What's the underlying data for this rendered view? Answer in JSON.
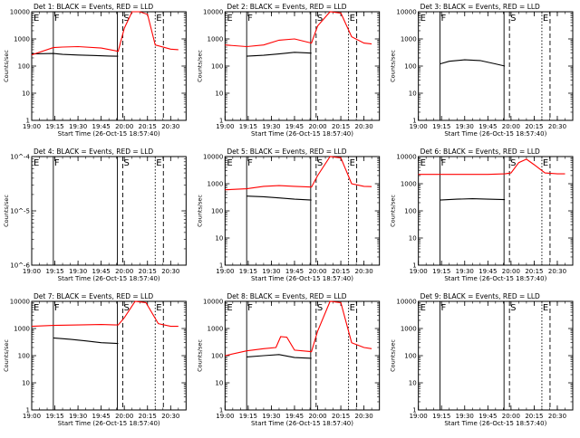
{
  "chart_data": [
    {
      "type": "line",
      "title": "Det 1: BLACK = Events, RED = LLD",
      "xlabel": "Start Time (26-Oct-15 18:57:40)",
      "ylabel": "Counts/sec",
      "xlim": [
        "19:00",
        "20:40"
      ],
      "ylim": [
        1,
        10000
      ],
      "yscale": "log",
      "x_ticks": [
        "19:00",
        "19:15",
        "19:30",
        "19:45",
        "20:00",
        "20:15",
        "20:30"
      ],
      "y_ticks": [
        "1",
        "10",
        "100",
        "1000",
        "10000"
      ],
      "markers": [
        {
          "label": "E",
          "time": "19:00"
        },
        {
          "label": "F",
          "time": "19:14"
        },
        {
          "label": "S",
          "time": "19:59"
        },
        {
          "label": "E",
          "time": "20:20"
        }
      ],
      "series": [
        {
          "name": "Events",
          "color": "#000000",
          "x": [
            "19:00",
            "19:14",
            "19:20",
            "19:30",
            "19:40",
            "19:50",
            "19:56"
          ],
          "values": [
            280,
            290,
            270,
            255,
            245,
            235,
            230
          ]
        },
        {
          "name": "LLD",
          "color": "#ff0000",
          "x": [
            "19:00",
            "19:14",
            "19:20",
            "19:30",
            "19:45",
            "19:56",
            "20:00",
            "20:05",
            "20:10",
            "20:15",
            "20:20",
            "20:30",
            "20:35"
          ],
          "values": [
            260,
            480,
            500,
            520,
            460,
            350,
            2500,
            10000,
            10000,
            8000,
            600,
            420,
            400
          ]
        }
      ]
    },
    {
      "type": "line",
      "title": "Det 2: BLACK = Events, RED = LLD",
      "xlabel": "Start Time (26-Oct-15 18:57:40)",
      "ylabel": "Counts/sec",
      "xlim": [
        "19:00",
        "20:40"
      ],
      "ylim": [
        1,
        10000
      ],
      "yscale": "log",
      "x_ticks": [
        "19:00",
        "19:15",
        "19:30",
        "19:45",
        "20:00",
        "20:15",
        "20:30"
      ],
      "y_ticks": [
        "1",
        "10",
        "100",
        "1000",
        "10000"
      ],
      "markers": [
        {
          "label": "E",
          "time": "19:00"
        },
        {
          "label": "F",
          "time": "19:14"
        },
        {
          "label": "S",
          "time": "19:59"
        },
        {
          "label": "E",
          "time": "20:20"
        }
      ],
      "series": [
        {
          "name": "Events",
          "color": "#000000",
          "x": [
            "19:14",
            "19:25",
            "19:35",
            "19:45",
            "19:56"
          ],
          "values": [
            230,
            250,
            280,
            320,
            300
          ]
        },
        {
          "name": "LLD",
          "color": "#ff0000",
          "x": [
            "19:00",
            "19:14",
            "19:25",
            "19:35",
            "19:45",
            "19:56",
            "20:00",
            "20:08",
            "20:15",
            "20:22",
            "20:30",
            "20:35"
          ],
          "values": [
            600,
            520,
            600,
            900,
            1000,
            700,
            3000,
            10000,
            9000,
            1200,
            700,
            650
          ]
        }
      ]
    },
    {
      "type": "line",
      "title": "Det 3: BLACK = Events, RED = LLD",
      "xlabel": "Start Time (26-Oct-15 18:57:40)",
      "ylabel": "Counts/sec",
      "xlim": [
        "19:00",
        "20:40"
      ],
      "ylim": [
        1,
        10000
      ],
      "yscale": "log",
      "x_ticks": [
        "19:00",
        "19:15",
        "19:30",
        "19:45",
        "20:00",
        "20:15",
        "20:30"
      ],
      "y_ticks": [
        "1",
        "10",
        "100",
        "1000",
        "10000"
      ],
      "markers": [
        {
          "label": "E",
          "time": "19:00"
        },
        {
          "label": "F",
          "time": "19:14"
        },
        {
          "label": "S",
          "time": "19:59"
        },
        {
          "label": "E",
          "time": "20:20"
        }
      ],
      "series": [
        {
          "name": "Events",
          "color": "#000000",
          "x": [
            "19:14",
            "19:20",
            "19:30",
            "19:40",
            "19:50",
            "19:56"
          ],
          "values": [
            120,
            150,
            170,
            160,
            120,
            100
          ]
        }
      ]
    },
    {
      "type": "line",
      "title": "Det 4: BLACK = Events, RED = LLD",
      "xlabel": "Start Time (26-Oct-15 18:57:40)",
      "ylabel": "Counts/sec",
      "xlim": [
        "19:00",
        "20:40"
      ],
      "ylim": [
        1e-06,
        0.0001
      ],
      "yscale": "log",
      "x_ticks": [
        "19:00",
        "19:15",
        "19:30",
        "19:45",
        "20:00",
        "20:15",
        "20:30"
      ],
      "y_ticks": [
        "10^-6",
        "10^-5",
        "10^-4"
      ],
      "markers": [
        {
          "label": "E",
          "time": "19:00"
        },
        {
          "label": "F",
          "time": "19:14"
        },
        {
          "label": "S",
          "time": "19:59"
        },
        {
          "label": "E",
          "time": "20:20"
        }
      ],
      "series": []
    },
    {
      "type": "line",
      "title": "Det 5: BLACK = Events, RED = LLD",
      "xlabel": "Start Time (26-Oct-15 18:57:40)",
      "ylabel": "Counts/sec",
      "xlim": [
        "19:00",
        "20:40"
      ],
      "ylim": [
        1,
        10000
      ],
      "yscale": "log",
      "x_ticks": [
        "19:00",
        "19:15",
        "19:30",
        "19:45",
        "20:00",
        "20:15",
        "20:30"
      ],
      "y_ticks": [
        "1",
        "10",
        "100",
        "1000",
        "10000"
      ],
      "markers": [
        {
          "label": "E",
          "time": "19:00"
        },
        {
          "label": "F",
          "time": "19:14"
        },
        {
          "label": "S",
          "time": "19:59"
        },
        {
          "label": "E",
          "time": "20:20"
        }
      ],
      "series": [
        {
          "name": "Events",
          "color": "#000000",
          "x": [
            "19:14",
            "19:25",
            "19:35",
            "19:45",
            "19:56"
          ],
          "values": [
            350,
            330,
            300,
            270,
            250
          ]
        },
        {
          "name": "LLD",
          "color": "#ff0000",
          "x": [
            "19:00",
            "19:14",
            "19:25",
            "19:35",
            "19:45",
            "19:56",
            "20:00",
            "20:08",
            "20:15",
            "20:22",
            "20:30",
            "20:35"
          ],
          "values": [
            600,
            650,
            800,
            850,
            800,
            750,
            2000,
            10000,
            9000,
            1000,
            800,
            780
          ]
        }
      ]
    },
    {
      "type": "line",
      "title": "Det 6: BLACK = Events, RED = LLD",
      "xlabel": "Start Time (26-Oct-15 18:57:40)",
      "ylabel": "Counts/sec",
      "xlim": [
        "19:00",
        "20:40"
      ],
      "ylim": [
        1,
        10000
      ],
      "yscale": "log",
      "x_ticks": [
        "19:00",
        "19:15",
        "19:30",
        "19:45",
        "20:00",
        "20:15",
        "20:30"
      ],
      "y_ticks": [
        "1",
        "10",
        "100",
        "1000",
        "10000"
      ],
      "markers": [
        {
          "label": "E",
          "time": "19:00"
        },
        {
          "label": "F",
          "time": "19:14"
        },
        {
          "label": "S",
          "time": "19:59"
        },
        {
          "label": "E",
          "time": "20:20"
        }
      ],
      "series": [
        {
          "name": "Events",
          "color": "#000000",
          "x": [
            "19:14",
            "19:25",
            "19:35",
            "19:45",
            "19:56"
          ],
          "values": [
            250,
            270,
            280,
            270,
            260
          ]
        },
        {
          "name": "LLD",
          "color": "#ff0000",
          "x": [
            "19:00",
            "19:15",
            "19:30",
            "19:45",
            "19:56",
            "20:00",
            "20:05",
            "20:10",
            "20:15",
            "20:22",
            "20:30",
            "20:35"
          ],
          "values": [
            2200,
            2200,
            2200,
            2200,
            2300,
            2500,
            6000,
            8000,
            5000,
            2500,
            2300,
            2300
          ]
        }
      ]
    },
    {
      "type": "line",
      "title": "Det 7: BLACK = Events, RED = LLD",
      "xlabel": "Start Time (26-Oct-15 18:57:40)",
      "ylabel": "Counts/sec",
      "xlim": [
        "19:00",
        "20:40"
      ],
      "ylim": [
        1,
        10000
      ],
      "yscale": "log",
      "x_ticks": [
        "19:00",
        "19:15",
        "19:30",
        "19:45",
        "20:00",
        "20:15",
        "20:30"
      ],
      "y_ticks": [
        "1",
        "10",
        "100",
        "1000",
        "10000"
      ],
      "markers": [
        {
          "label": "E",
          "time": "19:00"
        },
        {
          "label": "F",
          "time": "19:14"
        },
        {
          "label": "S",
          "time": "19:59"
        },
        {
          "label": "E",
          "time": "20:20"
        }
      ],
      "series": [
        {
          "name": "Events",
          "color": "#000000",
          "x": [
            "19:14",
            "19:25",
            "19:35",
            "19:45",
            "19:56"
          ],
          "values": [
            450,
            400,
            350,
            300,
            280
          ]
        },
        {
          "name": "LLD",
          "color": "#ff0000",
          "x": [
            "19:00",
            "19:14",
            "19:30",
            "19:45",
            "19:56",
            "20:00",
            "20:07",
            "20:14",
            "20:22",
            "20:30",
            "20:35"
          ],
          "values": [
            1200,
            1300,
            1350,
            1400,
            1350,
            2500,
            10000,
            9000,
            1500,
            1200,
            1200
          ]
        }
      ]
    },
    {
      "type": "line",
      "title": "Det 8: BLACK = Events, RED = LLD",
      "xlabel": "Start Time (26-Oct-15 18:57:40)",
      "ylabel": "Counts/sec",
      "xlim": [
        "19:00",
        "20:40"
      ],
      "ylim": [
        1,
        10000
      ],
      "yscale": "log",
      "x_ticks": [
        "19:00",
        "19:15",
        "19:30",
        "19:45",
        "20:00",
        "20:15",
        "20:30"
      ],
      "y_ticks": [
        "1",
        "10",
        "100",
        "1000",
        "10000"
      ],
      "markers": [
        {
          "label": "E",
          "time": "19:00"
        },
        {
          "label": "F",
          "time": "19:14"
        },
        {
          "label": "S",
          "time": "19:59"
        },
        {
          "label": "E",
          "time": "20:20"
        }
      ],
      "series": [
        {
          "name": "Events",
          "color": "#000000",
          "x": [
            "19:14",
            "19:25",
            "19:35",
            "19:45",
            "19:56"
          ],
          "values": [
            90,
            100,
            110,
            85,
            80
          ]
        },
        {
          "name": "LLD",
          "color": "#ff0000",
          "x": [
            "19:00",
            "19:14",
            "19:25",
            "19:33",
            "19:36",
            "19:40",
            "19:45",
            "19:56",
            "20:00",
            "20:08",
            "20:15",
            "20:22",
            "20:30",
            "20:35"
          ],
          "values": [
            100,
            150,
            180,
            200,
            500,
            480,
            160,
            140,
            800,
            10000,
            9000,
            300,
            200,
            180
          ]
        }
      ]
    },
    {
      "type": "line",
      "title": "Det 9: BLACK = Events, RED = LLD",
      "xlabel": "Start Time (26-Oct-15 18:57:40)",
      "ylabel": "Counts/sec",
      "xlim": [
        "19:00",
        "20:40"
      ],
      "ylim": [
        1,
        10000
      ],
      "yscale": "log",
      "x_ticks": [
        "19:00",
        "19:15",
        "19:30",
        "19:45",
        "20:00",
        "20:15",
        "20:30"
      ],
      "y_ticks": [
        "1",
        "10",
        "100",
        "1000",
        "10000"
      ],
      "markers": [
        {
          "label": "E",
          "time": "19:00"
        },
        {
          "label": "F",
          "time": "19:14"
        },
        {
          "label": "S",
          "time": "19:59"
        },
        {
          "label": "E",
          "time": "20:20"
        }
      ],
      "series": []
    }
  ]
}
